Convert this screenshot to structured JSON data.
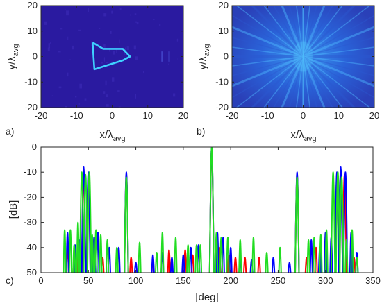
{
  "chart_data": [
    {
      "panel": "a)",
      "type": "heatmap",
      "xlabel": "x/λ",
      "xlabel_sub": "avg",
      "ylabel": "y/λ",
      "ylabel_sub": "avg",
      "xlim": [
        -20,
        20
      ],
      "ylim": [
        -20,
        20
      ],
      "xticks": [
        -20,
        -10,
        0,
        10,
        20
      ],
      "yticks": [
        -20,
        -10,
        0,
        10,
        20
      ],
      "background_color": "#2a1aa0",
      "highlight_color": "#3fd0ff",
      "shape_outline": [
        [
          -5.5,
          5.5
        ],
        [
          -2.5,
          3
        ],
        [
          3,
          3
        ],
        [
          5,
          0
        ],
        [
          3,
          -1.5
        ],
        [
          -5,
          -5
        ],
        [
          -5.5,
          5.5
        ]
      ]
    },
    {
      "panel": "b)",
      "type": "heatmap",
      "xlabel": "x/λ",
      "xlabel_sub": "avg",
      "ylabel": "y/λ",
      "ylabel_sub": "avg",
      "xlim": [
        -20,
        20
      ],
      "ylim": [
        -20,
        20
      ],
      "xticks": [
        -20,
        -10,
        0,
        10,
        20
      ],
      "yticks": [
        -20,
        -10,
        0,
        10,
        20
      ],
      "background_color": "#1c3fc4",
      "highlight_color": "#52c8ff"
    },
    {
      "panel": "c)",
      "type": "line",
      "xlabel": "[deg]",
      "ylabel": "[dB]",
      "xlim": [
        0,
        350
      ],
      "ylim": [
        -50,
        0
      ],
      "xticks": [
        0,
        50,
        100,
        150,
        200,
        250,
        300,
        350
      ],
      "yticks": [
        0,
        -10,
        -20,
        -30,
        -40,
        -50
      ],
      "series": [
        {
          "color": "#ff0000",
          "peaks": [
            [
              28,
              -40
            ],
            [
              35,
              -44
            ],
            [
              40,
              -38
            ],
            [
              45,
              -11
            ],
            [
              50,
              -12
            ],
            [
              55,
              -40
            ],
            [
              65,
              -44
            ],
            [
              90,
              -11
            ],
            [
              95,
              -44
            ],
            [
              118,
              -45
            ],
            [
              135,
              -41
            ],
            [
              152,
              -41
            ],
            [
              160,
              -43
            ],
            [
              180,
              -1
            ],
            [
              188,
              -40
            ],
            [
              198,
              -43
            ],
            [
              205,
              -44
            ],
            [
              215,
              -44
            ],
            [
              230,
              -44
            ],
            [
              270,
              -11
            ],
            [
              280,
              -44
            ],
            [
              290,
              -40
            ],
            [
              312,
              -12
            ],
            [
              316,
              -10
            ],
            [
              320,
              -11
            ],
            [
              330,
              -44
            ]
          ]
        },
        {
          "color": "#0000ff",
          "peaks": [
            [
              28,
              -34
            ],
            [
              36,
              -39
            ],
            [
              41,
              -37
            ],
            [
              45,
              -8
            ],
            [
              50,
              -10
            ],
            [
              56,
              -36
            ],
            [
              60,
              -34
            ],
            [
              72,
              -40
            ],
            [
              82,
              -40
            ],
            [
              90,
              -10
            ],
            [
              100,
              -46
            ],
            [
              118,
              -43
            ],
            [
              128,
              -42
            ],
            [
              138,
              -44
            ],
            [
              150,
              -43
            ],
            [
              158,
              -40
            ],
            [
              166,
              -39
            ],
            [
              180,
              0
            ],
            [
              186,
              -34
            ],
            [
              192,
              -36
            ],
            [
              200,
              -40
            ],
            [
              210,
              -44
            ],
            [
              222,
              -45
            ],
            [
              245,
              -44
            ],
            [
              262,
              -46
            ],
            [
              270,
              -10
            ],
            [
              285,
              -37
            ],
            [
              294,
              -40
            ],
            [
              300,
              -34
            ],
            [
              306,
              -36
            ],
            [
              312,
              -10
            ],
            [
              316,
              -8
            ],
            [
              321,
              -10
            ],
            [
              327,
              -34
            ],
            [
              333,
              -42
            ]
          ]
        },
        {
          "color": "#22dd22",
          "peaks": [
            [
              25,
              -33
            ],
            [
              31,
              -33
            ],
            [
              35,
              -39
            ],
            [
              39,
              -30
            ],
            [
              43,
              -10
            ],
            [
              47,
              -11
            ],
            [
              51,
              -10
            ],
            [
              54,
              -35
            ],
            [
              58,
              -33
            ],
            [
              63,
              -35
            ],
            [
              70,
              -37
            ],
            [
              80,
              -40
            ],
            [
              90,
              -12
            ],
            [
              104,
              -38
            ],
            [
              122,
              -42
            ],
            [
              128,
              -34
            ],
            [
              142,
              -36
            ],
            [
              155,
              -39
            ],
            [
              164,
              -39
            ],
            [
              168,
              -39
            ],
            [
              180,
              0
            ],
            [
              185,
              -34
            ],
            [
              190,
              -36
            ],
            [
              197,
              -36
            ],
            [
              210,
              -37
            ],
            [
              224,
              -36
            ],
            [
              238,
              -42
            ],
            [
              252,
              -40
            ],
            [
              270,
              -12
            ],
            [
              282,
              -37
            ],
            [
              288,
              -36
            ],
            [
              295,
              -35
            ],
            [
              301,
              -33
            ],
            [
              308,
              -10
            ],
            [
              313,
              -10
            ],
            [
              317,
              -12
            ],
            [
              322,
              -37
            ],
            [
              328,
              -33
            ],
            [
              333,
              -44
            ]
          ]
        }
      ]
    }
  ]
}
